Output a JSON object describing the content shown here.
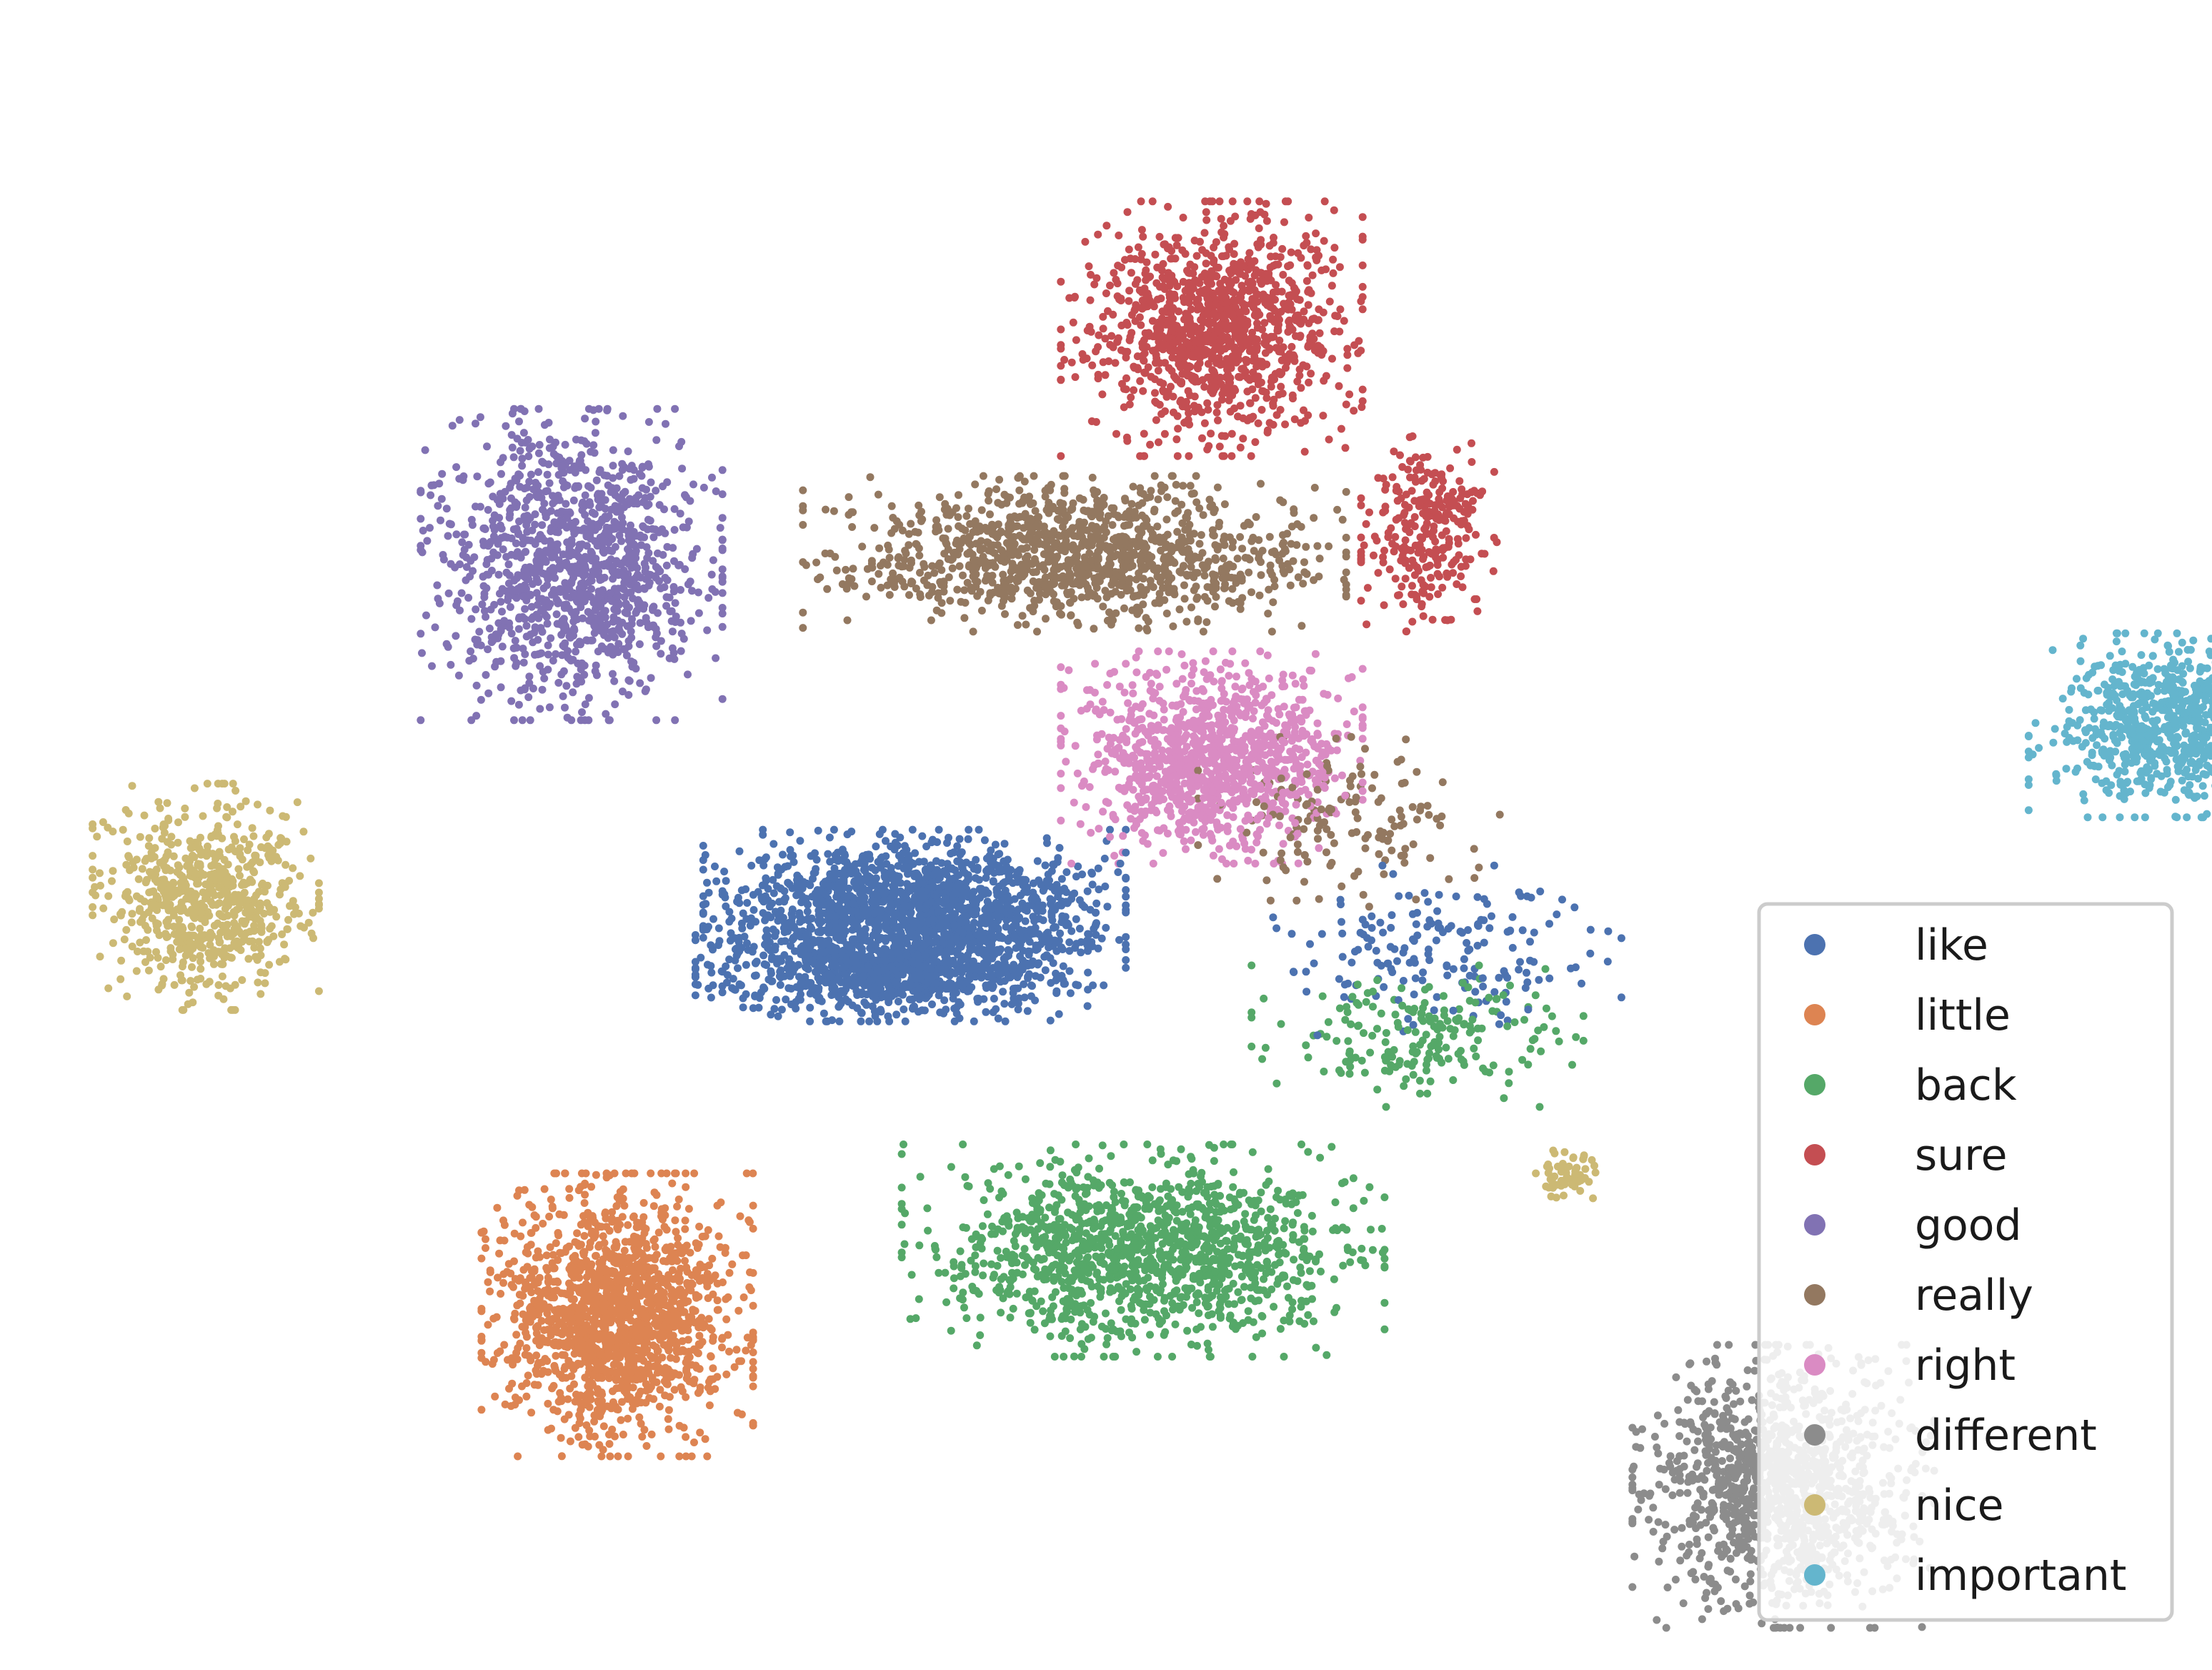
{
  "chart_data": {
    "type": "scatter",
    "title": "",
    "xlabel": "",
    "ylabel": "",
    "axes_visible": false,
    "grid": false,
    "legend": {
      "placement": "lower-right",
      "frame": true
    },
    "series": [
      {
        "name": "like",
        "color": "#4c72b0",
        "clusters": [
          {
            "cx": -2.0,
            "cy": 0.6,
            "sx": 1.4,
            "sy": 0.55,
            "n": 1500
          },
          {
            "cx": -2.2,
            "cy": 0.0,
            "sx": 1.3,
            "sy": 0.35,
            "n": 900
          },
          {
            "cx": 2.6,
            "cy": 0.2,
            "sx": 1.2,
            "sy": 0.6,
            "n": 180
          }
        ]
      },
      {
        "name": "little",
        "color": "#dd8452",
        "clusters": [
          {
            "cx": -4.6,
            "cy": -3.2,
            "sx": 0.9,
            "sy": 1.0,
            "n": 1500
          }
        ]
      },
      {
        "name": "back",
        "color": "#55a868",
        "clusters": [
          {
            "cx": 0.0,
            "cy": -2.6,
            "sx": 1.6,
            "sy": 0.75,
            "n": 1300
          },
          {
            "cx": 2.4,
            "cy": -0.6,
            "sx": 1.1,
            "sy": 0.5,
            "n": 200
          }
        ]
      },
      {
        "name": "sure",
        "color": "#c44e52",
        "clusters": [
          {
            "cx": 0.6,
            "cy": 6.0,
            "sx": 1.0,
            "sy": 0.9,
            "n": 1100
          },
          {
            "cx": 2.5,
            "cy": 4.1,
            "sx": 0.45,
            "sy": 0.7,
            "n": 280
          }
        ]
      },
      {
        "name": "good",
        "color": "#8172b3",
        "clusters": [
          {
            "cx": -5.0,
            "cy": 3.8,
            "sx": 1.0,
            "sy": 1.1,
            "n": 1200
          }
        ]
      },
      {
        "name": "really",
        "color": "#937860",
        "clusters": [
          {
            "cx": -0.6,
            "cy": 3.9,
            "sx": 1.8,
            "sy": 0.55,
            "n": 1200
          },
          {
            "cx": 1.8,
            "cy": 1.4,
            "sx": 1.0,
            "sy": 0.6,
            "n": 150
          }
        ]
      },
      {
        "name": "right",
        "color": "#da8bc3",
        "clusters": [
          {
            "cx": 0.6,
            "cy": 2.0,
            "sx": 1.0,
            "sy": 0.75,
            "n": 1100
          }
        ]
      },
      {
        "name": "different",
        "color": "#8c8c8c",
        "clusters": [
          {
            "cx": 5.6,
            "cy": -4.8,
            "sx": 1.0,
            "sy": 1.0,
            "n": 1200
          }
        ]
      },
      {
        "name": "nice",
        "color": "#ccb974",
        "clusters": [
          {
            "cx": -8.2,
            "cy": 0.7,
            "sx": 0.75,
            "sy": 0.8,
            "n": 700
          },
          {
            "cx": 3.7,
            "cy": -1.9,
            "sx": 0.3,
            "sy": 0.2,
            "n": 60
          }
        ]
      },
      {
        "name": "important",
        "color": "#64b5cd",
        "clusters": [
          {
            "cx": 9.0,
            "cy": 2.3,
            "sx": 0.95,
            "sy": 0.65,
            "n": 800
          }
        ]
      }
    ]
  }
}
